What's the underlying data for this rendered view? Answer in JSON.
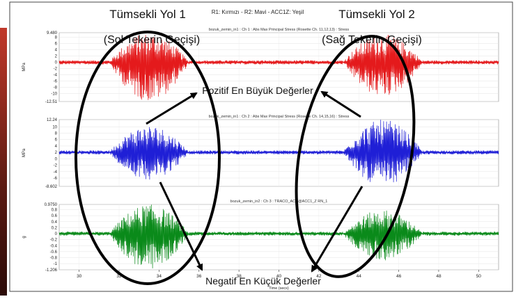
{
  "header": {
    "legend_text": "R1: Kırmızı - R2: Mavi - ACC1Z: Yeşil"
  },
  "annotations": {
    "bump1_title": "Tümsekli Yol 1",
    "bump1_subtitle": "(Sol Tekerin Geçişi)",
    "bump2_title": "Tümsekli Yol 2",
    "bump2_subtitle": "(Sağ Tekerin Geçişi)",
    "positive_label": "Pozitif En Büyük Değerler",
    "negative_label": "Negatif En Küçük Değerler"
  },
  "colors": {
    "red": "#e41a1c",
    "blue": "#1f1fd6",
    "green": "#0a8a1a",
    "ellipse": "#000000"
  },
  "chart_data": [
    {
      "type": "line",
      "title": "bozuk_zemin_in1 : Ch 1 : Abs Max Principal Stress (Rosette Ch. 11,12,13) : Stress",
      "ylabel": "MPa",
      "xlim": [
        29,
        51
      ],
      "ylim": [
        -12.51,
        9.48
      ],
      "yticks": [
        "9.480",
        "8",
        "6",
        "4",
        "2",
        "0",
        "-2",
        "-4",
        "-6",
        "-8",
        "-10",
        "-12.51"
      ],
      "baseline": 0,
      "bursts": [
        {
          "x_range": [
            31.5,
            35.5
          ],
          "max": 9.48,
          "min": -12.51
        },
        {
          "x_range": [
            43.2,
            47.2
          ],
          "max": 9.0,
          "min": -11.0
        }
      ],
      "series": [
        {
          "name": "R1",
          "color": "red"
        }
      ]
    },
    {
      "type": "line",
      "title": "bozuk_zemin_in1 : Ch 2 : Abs Max Principal Stress (Rosette Ch. 14,15,16) : Stress",
      "ylabel": "MPa",
      "xlim": [
        29,
        51
      ],
      "ylim": [
        -8.602,
        12.24
      ],
      "yticks": [
        "12.24",
        "10",
        "8",
        "6",
        "4",
        "2",
        "0",
        "-2",
        "-4",
        "-6",
        "-8.602"
      ],
      "baseline": 2,
      "bursts": [
        {
          "x_range": [
            31.5,
            35.5
          ],
          "max": 10.5,
          "min": -6.5
        },
        {
          "x_range": [
            43.2,
            47.2
          ],
          "max": 12.24,
          "min": -8.6
        }
      ],
      "series": [
        {
          "name": "R2",
          "color": "blue"
        }
      ]
    },
    {
      "type": "line",
      "title": "bozuk_zemin_in2 : Ch 3 : TRACO_ACC@ACC1_Z RN_1",
      "ylabel": "g",
      "xlabel": "Time (secs)",
      "xlim": [
        29,
        51
      ],
      "xticks": [
        30,
        32,
        34,
        36,
        38,
        40,
        42,
        44,
        46,
        48,
        50
      ],
      "ylim": [
        -1.206,
        0.975
      ],
      "yticks": [
        "0.9750",
        "0.8",
        "0.6",
        "0.4",
        "0.2",
        "0",
        "-0.2",
        "-0.4",
        "-0.6",
        "-0.8",
        "-1",
        "-1.206"
      ],
      "baseline": 0,
      "bursts": [
        {
          "x_range": [
            31.5,
            35.5
          ],
          "max": 0.975,
          "min": -1.206
        },
        {
          "x_range": [
            43.2,
            47.2
          ],
          "max": 0.8,
          "min": -0.9
        }
      ],
      "series": [
        {
          "name": "ACC1Z",
          "color": "green"
        }
      ]
    }
  ]
}
